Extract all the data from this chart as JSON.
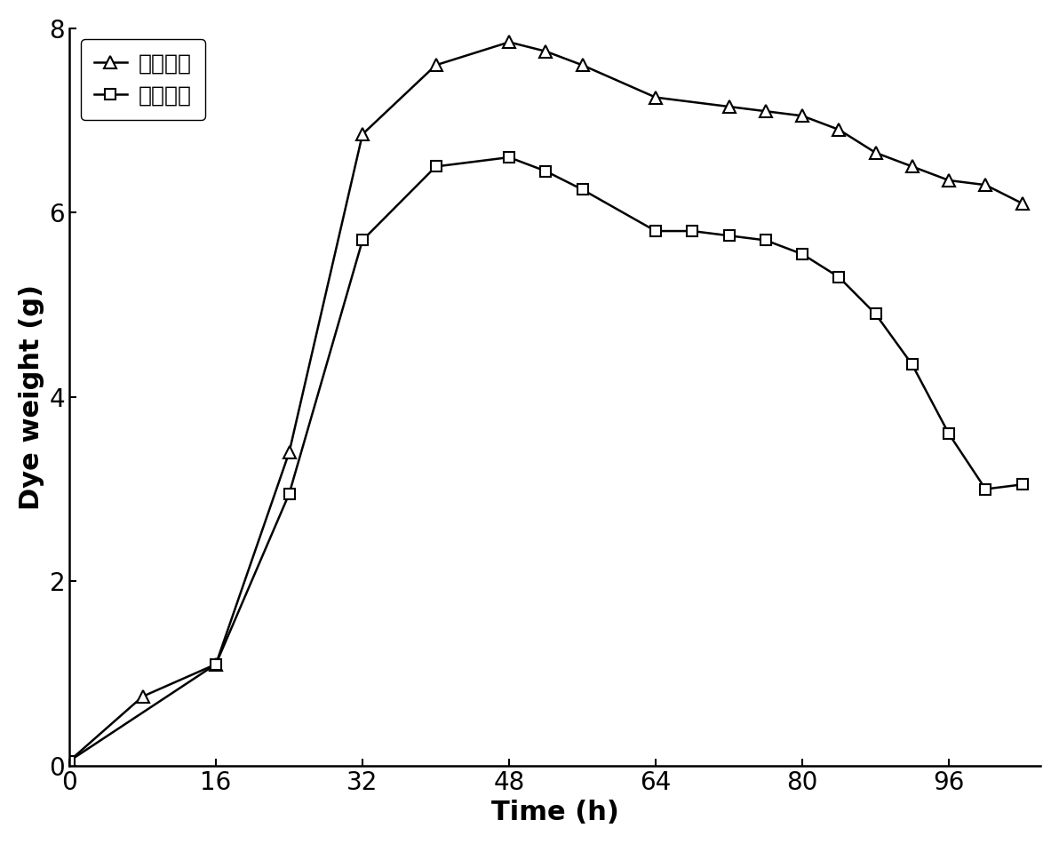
{
  "ultrasonic_x": [
    0,
    8,
    16,
    24,
    32,
    40,
    48,
    52,
    56,
    64,
    72,
    76,
    80,
    84,
    88,
    92,
    96,
    100,
    104
  ],
  "ultrasonic_y": [
    0.05,
    0.75,
    1.1,
    3.4,
    6.85,
    7.6,
    7.85,
    7.75,
    7.6,
    7.25,
    7.15,
    7.1,
    7.05,
    6.9,
    6.65,
    6.5,
    6.35,
    6.3,
    6.1
  ],
  "shaker_x": [
    0,
    16,
    24,
    32,
    40,
    48,
    52,
    56,
    64,
    68,
    72,
    76,
    80,
    84,
    88,
    92,
    96,
    100,
    104
  ],
  "shaker_y": [
    0.05,
    1.1,
    2.95,
    5.7,
    6.5,
    6.6,
    6.45,
    6.25,
    5.8,
    5.8,
    5.75,
    5.7,
    5.55,
    5.3,
    4.9,
    4.35,
    3.6,
    3.0,
    3.05
  ],
  "xlabel": "Time (h)",
  "ylabel": "Dye weight (g)",
  "legend_ultrasonic": "超声处理",
  "legend_shaker": "摇床培养",
  "xlim": [
    0,
    106
  ],
  "ylim": [
    0,
    8
  ],
  "xticks": [
    0,
    16,
    32,
    48,
    64,
    80,
    96
  ],
  "yticks": [
    0,
    2,
    4,
    6,
    8
  ],
  "line_color": "#000000",
  "background_color": "#ffffff"
}
